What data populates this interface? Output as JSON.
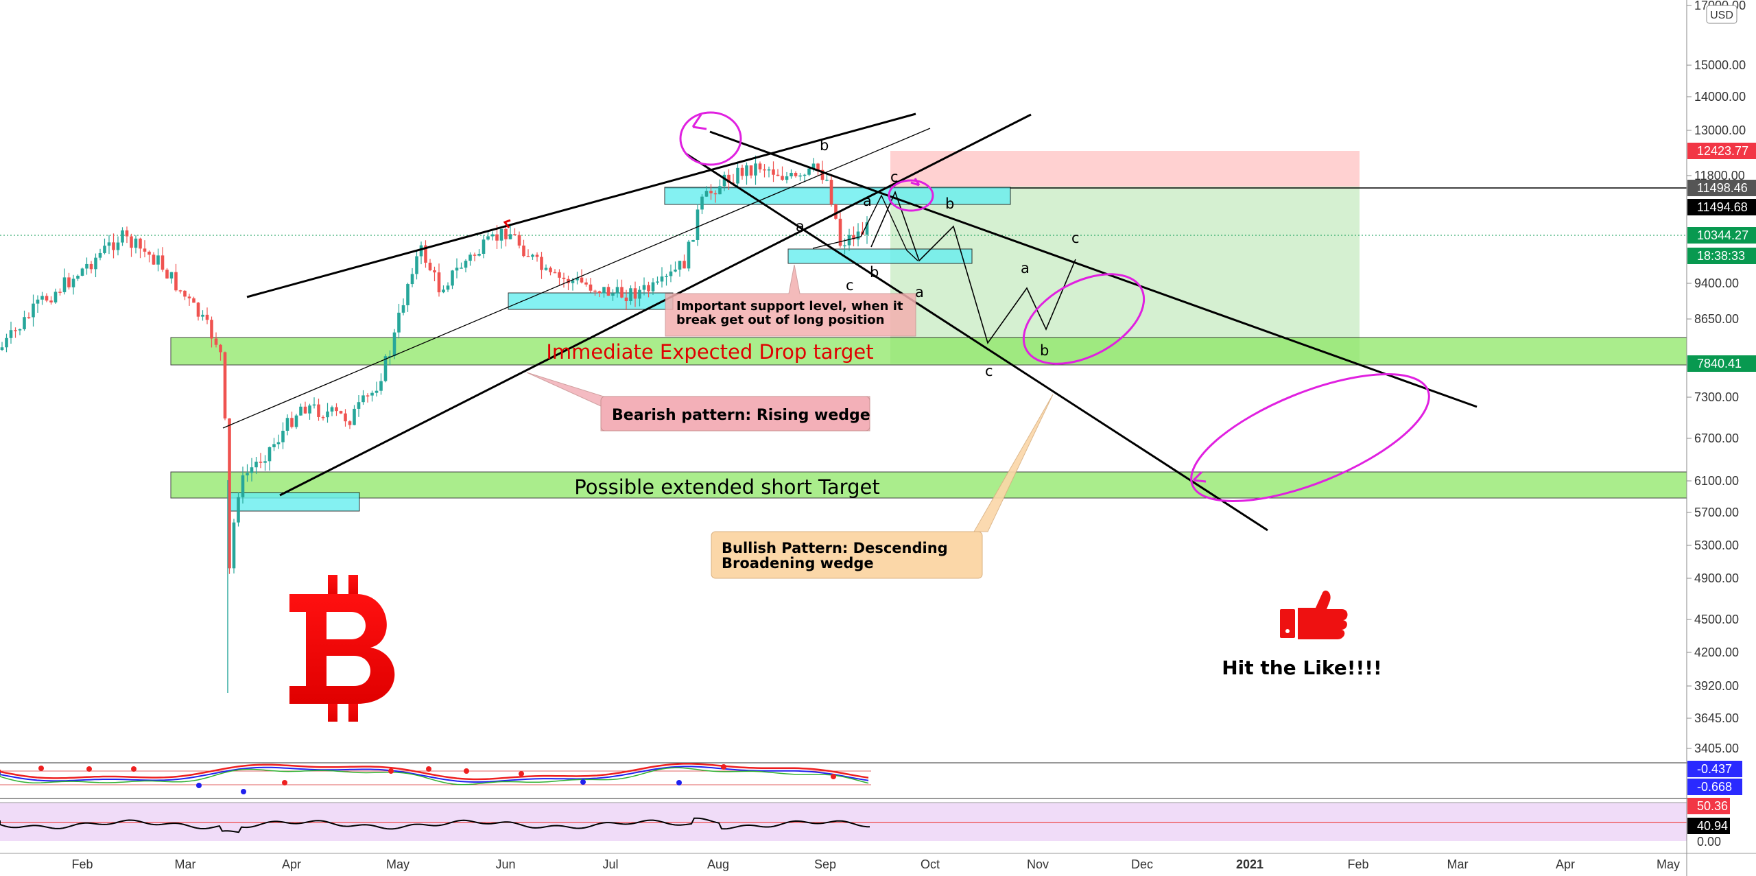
{
  "chart_data": {
    "type": "candlestick",
    "currency_badge": "USD",
    "x_tick_labels": [
      "Feb",
      "Mar",
      "Apr",
      "May",
      "Jun",
      "Jul",
      "Aug",
      "Sep",
      "Oct",
      "Nov",
      "Dec",
      "2021",
      "Feb",
      "Mar",
      "Apr",
      "May"
    ],
    "y_tick_labels": [
      "17000.00",
      "15000.00",
      "14000.00",
      "13000.00",
      "11800.00",
      "9400.00",
      "8650.00",
      "7300.00",
      "6700.00",
      "6100.00",
      "5700.00",
      "5300.00",
      "4900.00",
      "4500.00",
      "4200.00",
      "3920.00",
      "3645.00",
      "3405.00"
    ],
    "y_scale": "log",
    "ylim": [
      3300,
      17500
    ],
    "price_tags": [
      {
        "value": "12423.77",
        "color": "#f23645"
      },
      {
        "value": "11498.46",
        "color": "#555555"
      },
      {
        "value": "11494.68",
        "color": "#000000"
      },
      {
        "value": "10344.27",
        "color": "#089950"
      },
      {
        "value": "18:38:33",
        "color": "#089950"
      },
      {
        "value": "7840.41",
        "color": "#089950"
      }
    ],
    "last_price": 10344.27,
    "zones": [
      {
        "label": "Immediate Expected Drop target",
        "low": 7840,
        "high": 8300,
        "color": "#90ee60"
      },
      {
        "label": "Possible extended short Target",
        "low": 5800,
        "high": 6200,
        "color": "#90ee60"
      }
    ],
    "annotations": [
      "Important support level, when it",
      "break get out of long position",
      "Bearish pattern: Rising wedge",
      "Bullish Pattern: Descending",
      "Broadening wedge",
      "Hit the Like!!!!"
    ],
    "wave_labels": [
      "a",
      "b",
      "c",
      "a",
      "b",
      "c",
      "a",
      "b",
      "c",
      "a",
      "b",
      "c"
    ],
    "indicator1": {
      "values": [
        "-0.437",
        "-0.668"
      ],
      "colors": [
        "#2a2aff",
        "#2a2aff"
      ]
    },
    "indicator2": {
      "tick_labels": [
        "50.36",
        "40.94",
        "0.00"
      ],
      "colors": [
        "#f23645",
        "#000000"
      ]
    }
  }
}
